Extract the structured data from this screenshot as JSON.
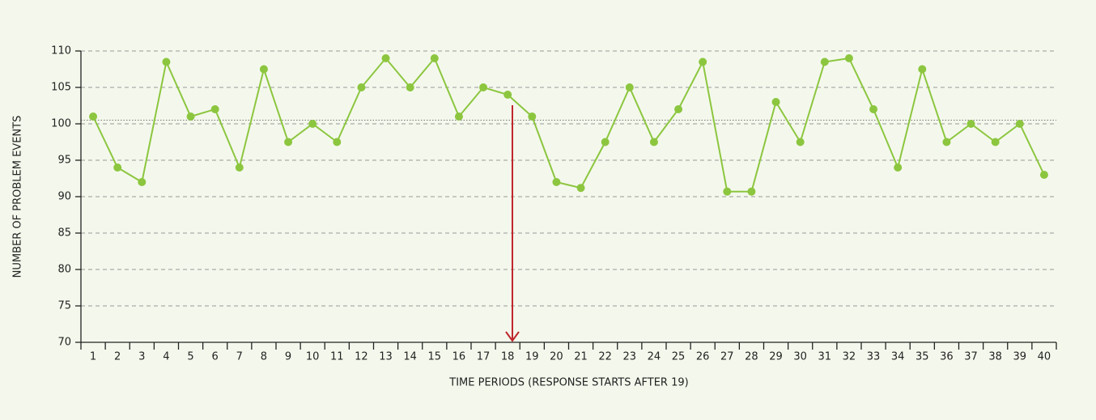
{
  "chart_data": {
    "type": "line",
    "x_label": "TIME PERIODS (RESPONSE STARTS AFTER 19)",
    "y_label": "NUMBER OF PROBLEM EVENTS",
    "categories": [
      "1",
      "2",
      "3",
      "4",
      "5",
      "6",
      "7",
      "8",
      "9",
      "10",
      "11",
      "12",
      "13",
      "14",
      "15",
      "16",
      "17",
      "18",
      "19",
      "20",
      "21",
      "22",
      "23",
      "24",
      "25",
      "26",
      "27",
      "28",
      "29",
      "30",
      "31",
      "32",
      "33",
      "34",
      "35",
      "36",
      "37",
      "38",
      "39",
      "40"
    ],
    "series": [
      {
        "name": "Problem events",
        "color": "#8cc63f",
        "values": [
          101,
          94,
          92,
          108.5,
          101,
          102,
          94,
          107.5,
          97.5,
          100,
          97.5,
          105,
          109,
          105,
          109,
          101,
          105,
          104,
          101,
          92,
          91.2,
          97.5,
          105,
          97.5,
          102,
          108.5,
          90.7,
          90.7,
          103,
          97.5,
          108.5,
          109,
          102,
          94,
          107.5,
          97.5,
          100,
          97.5,
          100,
          93
        ]
      }
    ],
    "reference_line": 100.5,
    "ylim": [
      70,
      110
    ],
    "yticks": [
      70,
      75,
      80,
      85,
      90,
      95,
      100,
      105,
      110
    ],
    "grid": true
  }
}
